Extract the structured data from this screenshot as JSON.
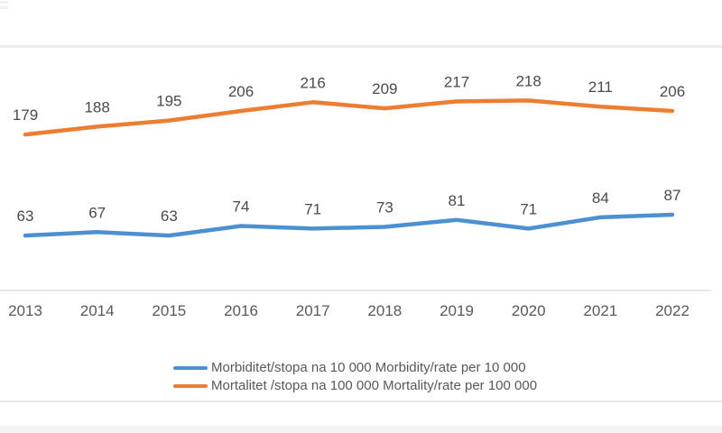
{
  "chart_data": {
    "type": "line",
    "title": "",
    "xlabel": "",
    "ylabel": "",
    "categories": [
      "2013",
      "2014",
      "2015",
      "2016",
      "2017",
      "2018",
      "2019",
      "2020",
      "2021",
      "2022"
    ],
    "series": [
      {
        "name": "Morbiditet/stopa na 10 000 Morbidity/rate per 10 000",
        "color": "#4A90D2",
        "values": [
          63,
          67,
          63,
          74,
          71,
          73,
          81,
          71,
          84,
          87
        ]
      },
      {
        "name": "Mortalitet /stopa na 100 000 Mortality/rate per 100 000",
        "color": "#ED7D31",
        "values": [
          179,
          188,
          195,
          206,
          216,
          209,
          217,
          218,
          211,
          206
        ]
      }
    ],
    "ylim": [
      0,
      250
    ],
    "grid": false,
    "data_labels": true,
    "legend_position": "bottom",
    "axis_line_color": "#d9d9d9",
    "data_label_color": "#4a4a4a",
    "tick_label_color": "#595959"
  },
  "legend": {
    "items": [
      {
        "label": "Morbiditet/stopa na 10 000 Morbidity/rate per 10 000",
        "color": "#4A90D2",
        "series_index": 0
      },
      {
        "label": "Mortalitet /stopa na 100 000 Mortality/rate per 100 000",
        "color": "#ED7D31",
        "series_index": 1
      }
    ]
  }
}
